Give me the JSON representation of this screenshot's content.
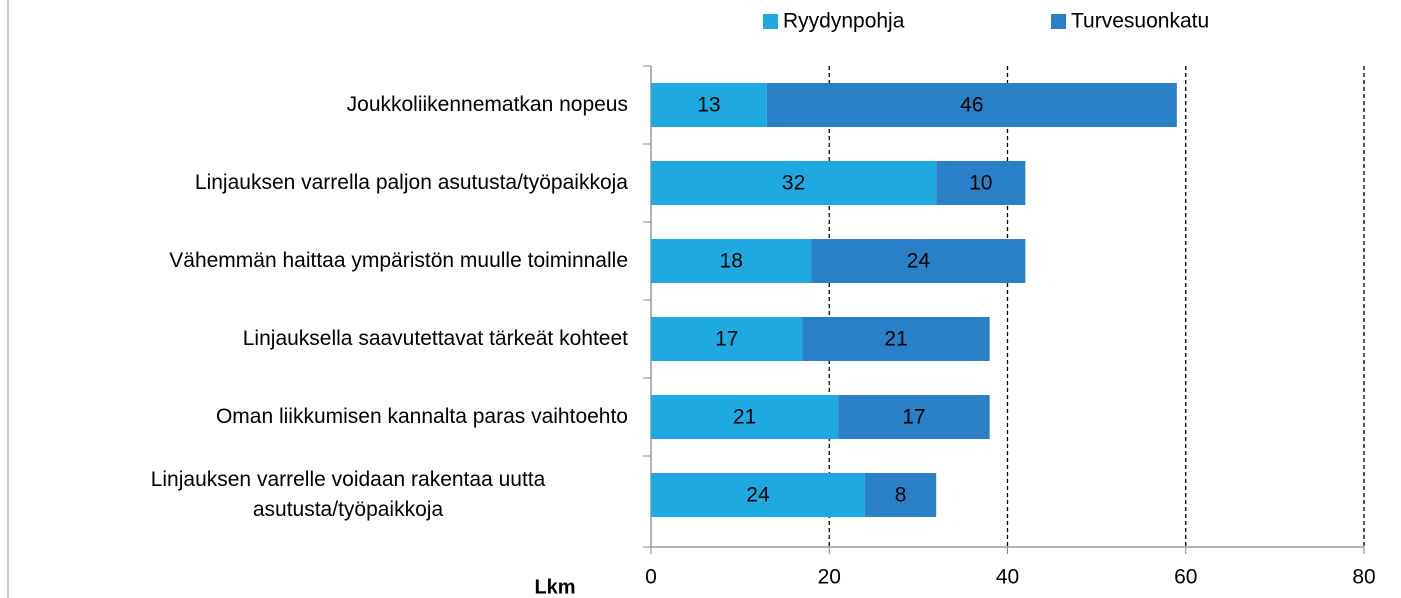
{
  "chart_data": {
    "type": "stacked_barh",
    "categories": [
      "Joukkoliikennematkan nopeus",
      "Linjauksen varrella paljon asutusta/työpaikkoja",
      "Vähemmän haittaa ympäristön muulle toiminnalle",
      "Linjauksella saavutettavat tärkeät kohteet",
      "Oman liikkumisen kannalta paras vaihtoehto",
      "Linjauksen varrelle voidaan rakentaa uutta asutusta/työpaikkoja"
    ],
    "series": [
      {
        "name": "Ryydynpohja",
        "color": "#1fa9e1",
        "values": [
          13,
          32,
          18,
          17,
          21,
          24
        ]
      },
      {
        "name": "Turvesuonkatu",
        "color": "#2a80c6",
        "values": [
          46,
          10,
          24,
          21,
          17,
          8
        ]
      }
    ],
    "xlabel": "Lkm",
    "xlim": [
      0,
      80
    ],
    "xticks": [
      0,
      20,
      40,
      60,
      80
    ],
    "grid": true,
    "legend": "top"
  }
}
